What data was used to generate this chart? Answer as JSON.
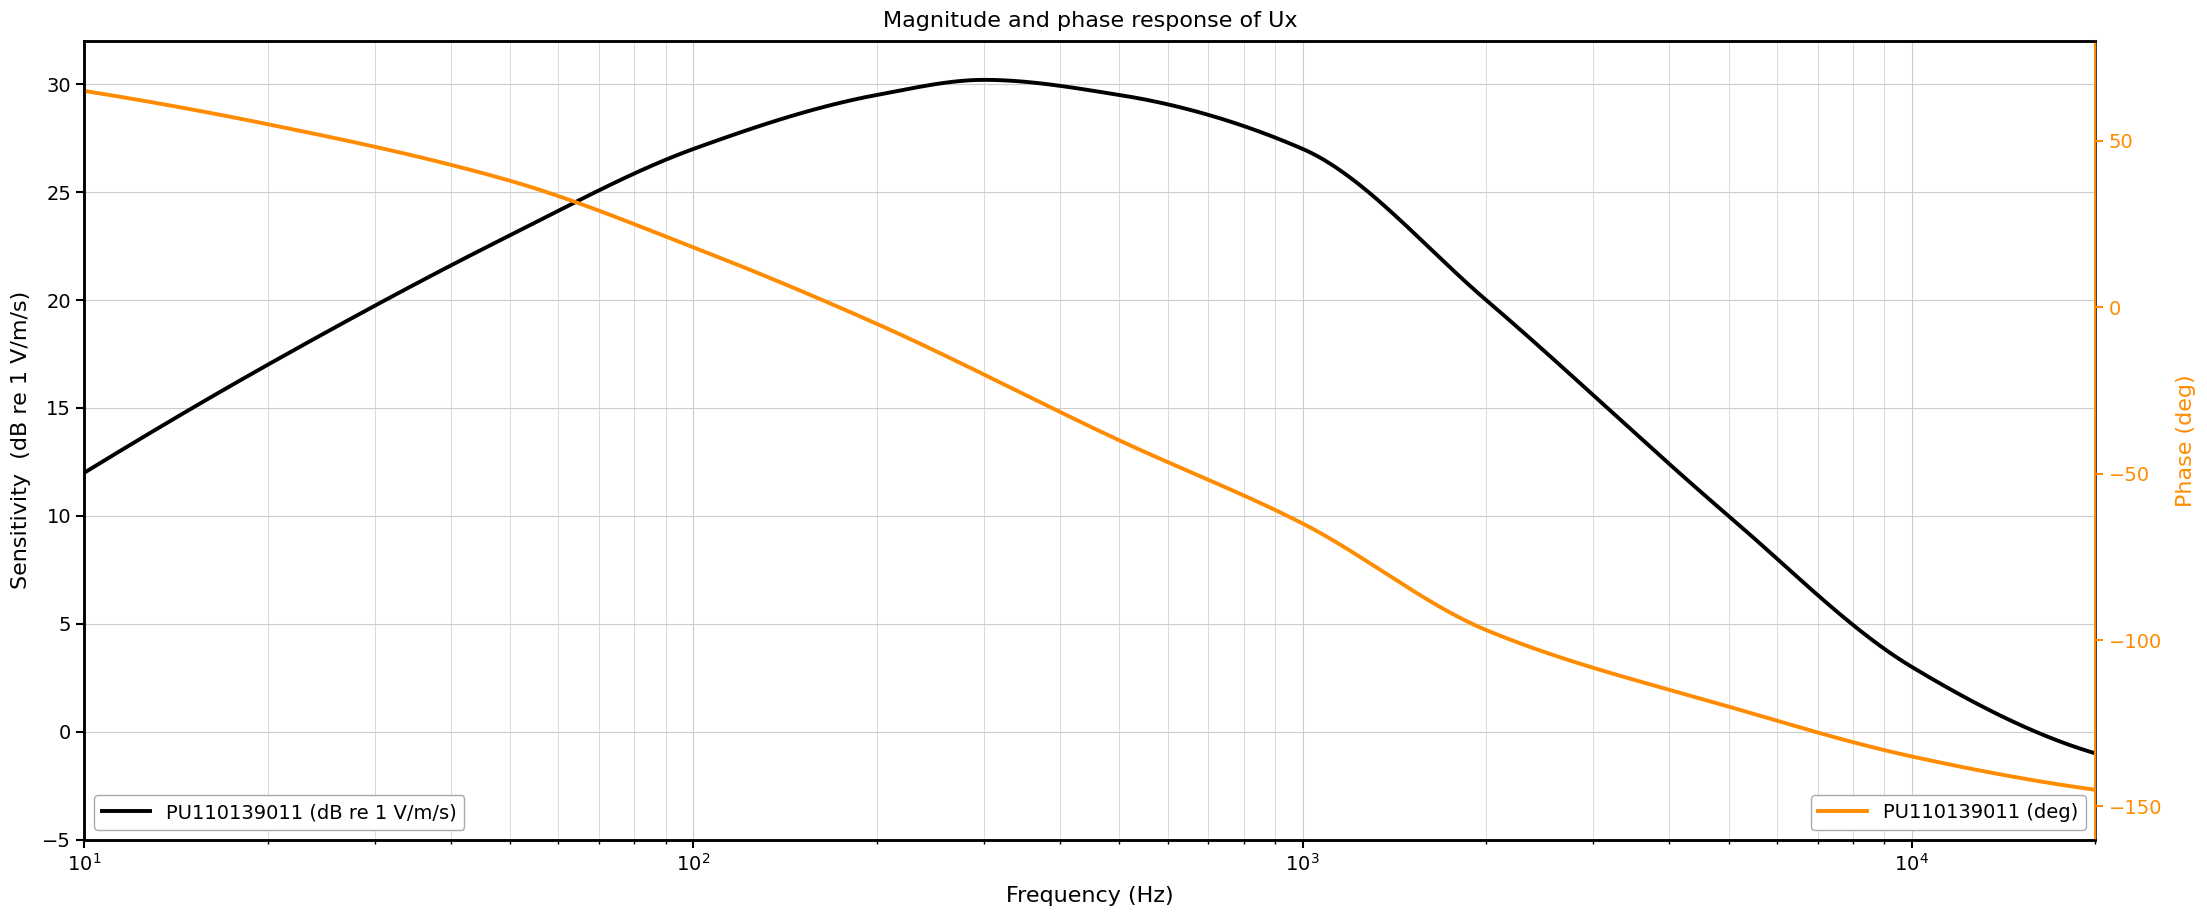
{
  "title": "Magnitude and phase response of Ux",
  "xlabel": "Frequency (Hz)",
  "ylabel_left": "Sensitivity  (dB re 1 V/m/s)",
  "ylabel_right": "Phase (deg)",
  "freq_min": 10,
  "freq_max": 20000,
  "ylim_left": [
    -5,
    32
  ],
  "ylim_right": [
    -160,
    80
  ],
  "yticks_left": [
    -5,
    0,
    5,
    10,
    15,
    20,
    25,
    30
  ],
  "yticks_right": [
    -150,
    -100,
    -50,
    0,
    50
  ],
  "color_magnitude": "#000000",
  "color_phase": "#FF8C00",
  "legend_label_mag": "PU110139011 (dB re 1 V/m/s)",
  "legend_label_phase": "PU110139011 (deg)",
  "line_width": 2.8,
  "bg_color": "#ffffff",
  "grid_color": "#cccccc",
  "title_fontsize": 16,
  "label_fontsize": 16,
  "tick_fontsize": 14
}
